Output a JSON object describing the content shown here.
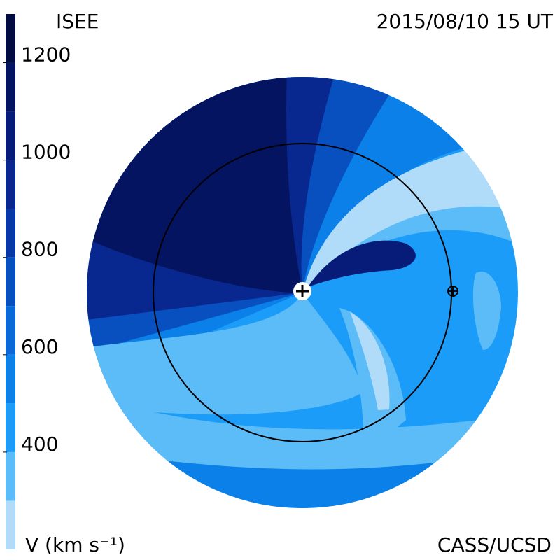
{
  "chart_data": {
    "type": "contour",
    "title": "ISEE",
    "subtitle": "2015/08/10 15 UT",
    "colorbar_label": "V (km s⁻¹)",
    "credit": "CASS/UCSD",
    "ylim": [
      200,
      1300
    ],
    "yticks": [
      400,
      600,
      800,
      1000,
      1200
    ],
    "levels": [
      200,
      300,
      400,
      500,
      600,
      700,
      800,
      900,
      1000,
      1100,
      1200,
      1300
    ],
    "colors": [
      "#b0dcfa",
      "#5cbcf8",
      "#1a9cf8",
      "#0a80e8",
      "#0a68d8",
      "#0850c0",
      "#0838a8",
      "#082890",
      "#061c78",
      "#041460",
      "#020c40"
    ]
  }
}
